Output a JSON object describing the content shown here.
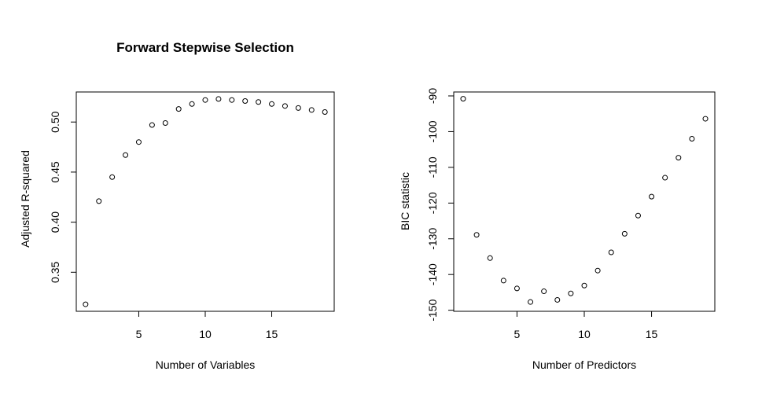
{
  "chart_data": [
    {
      "type": "scatter",
      "title": "Forward Stepwise Selection",
      "xlabel": "Number of Variables",
      "ylabel": "Adjusted R-squared",
      "xlim": [
        0.3,
        19.7
      ],
      "ylim": [
        0.311,
        0.53
      ],
      "x_ticks": [
        5,
        10,
        15
      ],
      "y_ticks": [
        0.35,
        0.4,
        0.45,
        0.5
      ],
      "y_tick_labels": [
        "0.35",
        "0.40",
        "0.45",
        "0.50"
      ],
      "highlight_color": "#0000cc",
      "series": [
        {
          "x": [
            1,
            2,
            3,
            4,
            5,
            6,
            7,
            8,
            9,
            10,
            11,
            12,
            13,
            14,
            15,
            16,
            17,
            18,
            19
          ],
          "y": [
            0.318,
            0.421,
            0.445,
            0.467,
            0.48,
            0.497,
            0.499,
            0.513,
            0.518,
            0.522,
            0.523,
            0.522,
            0.521,
            0.52,
            0.518,
            0.516,
            0.514,
            0.512,
            0.51
          ],
          "highlight_index": 10
        }
      ]
    },
    {
      "type": "scatter",
      "title": "",
      "xlabel": "Number of Predictors",
      "ylabel": "BIC statistic",
      "xlim": [
        0.3,
        19.7
      ],
      "ylim": [
        -150.3,
        -88.9
      ],
      "x_ticks": [
        5,
        10,
        15
      ],
      "y_ticks": [
        -150,
        -140,
        -130,
        -120,
        -110,
        -100,
        -90
      ],
      "y_tick_labels": [
        "-150",
        "-140",
        "-130",
        "-120",
        "-110",
        "-100",
        "-90"
      ],
      "highlight_color": "#dd0000",
      "series": [
        {
          "x": [
            1,
            2,
            3,
            4,
            5,
            6,
            7,
            8,
            9,
            10,
            11,
            12,
            13,
            14,
            15,
            16,
            17,
            18,
            19
          ],
          "y": [
            -90.8,
            -128.9,
            -135.4,
            -141.7,
            -143.9,
            -147.7,
            -144.7,
            -147.1,
            -145.3,
            -143.1,
            -138.9,
            -133.8,
            -128.6,
            -123.5,
            -118.2,
            -112.9,
            -107.3,
            -102.0,
            -96.4
          ],
          "highlight_index": 5
        }
      ]
    }
  ]
}
